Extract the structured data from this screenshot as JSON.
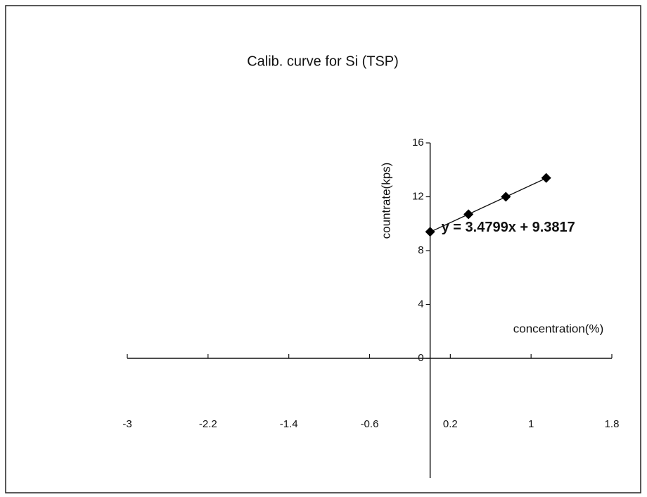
{
  "chart_data": {
    "type": "scatter",
    "title": "Calib. curve for Si (TSP)",
    "x_label": "concentration(%)",
    "y_label": "countrate(kps)",
    "x": [
      0,
      0.38,
      0.75,
      1.15
    ],
    "values": [
      9.4,
      10.7,
      12.0,
      13.4
    ],
    "color": "#000000",
    "xlim": [
      -3,
      1.8
    ],
    "xticks": [
      -3,
      -2.2,
      -1.4,
      -0.6,
      0.2,
      1,
      1.8
    ],
    "ylim": [
      0,
      16
    ],
    "yticks": [
      0,
      4,
      8,
      12,
      16
    ],
    "grid": false,
    "trendline": {
      "slope": 3.4799,
      "intercept": 9.3817,
      "label": "y = 3.4799x + 9.3817"
    }
  }
}
